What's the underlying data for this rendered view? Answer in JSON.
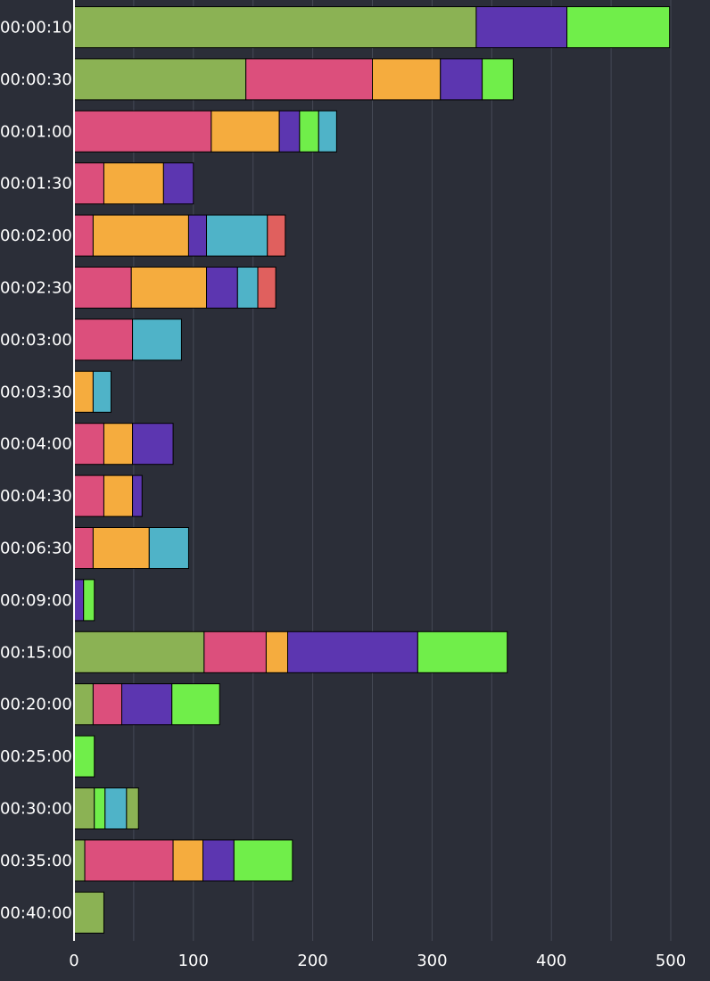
{
  "chart_data": {
    "type": "bar",
    "orientation": "horizontal",
    "stacked": true,
    "title": "",
    "xlabel": "",
    "ylabel": "",
    "xlim": [
      0,
      530
    ],
    "x_ticks": [
      0,
      100,
      200,
      300,
      400,
      500
    ],
    "grid": true,
    "legend": "none",
    "categories": [
      "00:00:10",
      "00:00:30",
      "00:01:00",
      "00:01:30",
      "00:02:00",
      "00:02:30",
      "00:03:00",
      "00:03:30",
      "00:04:00",
      "00:04:30",
      "00:06:30",
      "00:09:00",
      "00:15:00",
      "00:20:00",
      "00:25:00",
      "00:30:00",
      "00:35:00",
      "00:40:00"
    ],
    "stacks": [
      [
        {
          "color": "#8bb254",
          "value": 337
        },
        {
          "color": "#5c36b0",
          "value": 76
        },
        {
          "color": "#70ee4a",
          "value": 86
        }
      ],
      [
        {
          "color": "#8bb254",
          "value": 144
        },
        {
          "color": "#dc4f7c",
          "value": 106
        },
        {
          "color": "#f5ac3e",
          "value": 57
        },
        {
          "color": "#5c36b0",
          "value": 35
        },
        {
          "color": "#70ee4a",
          "value": 26
        }
      ],
      [
        {
          "color": "#dc4f7c",
          "value": 115
        },
        {
          "color": "#f5ac3e",
          "value": 57
        },
        {
          "color": "#5c36b0",
          "value": 17
        },
        {
          "color": "#70ee4a",
          "value": 16
        },
        {
          "color": "#4fb3c8",
          "value": 15
        }
      ],
      [
        {
          "color": "#dc4f7c",
          "value": 25
        },
        {
          "color": "#f5ac3e",
          "value": 50
        },
        {
          "color": "#5c36b0",
          "value": 25
        }
      ],
      [
        {
          "color": "#dc4f7c",
          "value": 16
        },
        {
          "color": "#f5ac3e",
          "value": 80
        },
        {
          "color": "#5c36b0",
          "value": 15
        },
        {
          "color": "#4fb3c8",
          "value": 51
        },
        {
          "color": "#e0605e",
          "value": 15
        }
      ],
      [
        {
          "color": "#dc4f7c",
          "value": 48
        },
        {
          "color": "#f5ac3e",
          "value": 63
        },
        {
          "color": "#5c36b0",
          "value": 26
        },
        {
          "color": "#4fb3c8",
          "value": 17
        },
        {
          "color": "#e0605e",
          "value": 15
        }
      ],
      [
        {
          "color": "#dc4f7c",
          "value": 49
        },
        {
          "color": "#4fb3c8",
          "value": 41
        }
      ],
      [
        {
          "color": "#f5ac3e",
          "value": 16
        },
        {
          "color": "#4fb3c8",
          "value": 15
        }
      ],
      [
        {
          "color": "#dc4f7c",
          "value": 25
        },
        {
          "color": "#f5ac3e",
          "value": 24
        },
        {
          "color": "#5c36b0",
          "value": 34
        }
      ],
      [
        {
          "color": "#dc4f7c",
          "value": 25
        },
        {
          "color": "#f5ac3e",
          "value": 24
        },
        {
          "color": "#5c36b0",
          "value": 8
        }
      ],
      [
        {
          "color": "#dc4f7c",
          "value": 16
        },
        {
          "color": "#f5ac3e",
          "value": 47
        },
        {
          "color": "#4fb3c8",
          "value": 33
        }
      ],
      [
        {
          "color": "#5c36b0",
          "value": 8
        },
        {
          "color": "#70ee4a",
          "value": 9
        }
      ],
      [
        {
          "color": "#8bb254",
          "value": 109
        },
        {
          "color": "#dc4f7c",
          "value": 52
        },
        {
          "color": "#f5ac3e",
          "value": 18
        },
        {
          "color": "#5c36b0",
          "value": 109
        },
        {
          "color": "#70ee4a",
          "value": 75
        }
      ],
      [
        {
          "color": "#8bb254",
          "value": 16
        },
        {
          "color": "#dc4f7c",
          "value": 24
        },
        {
          "color": "#5c36b0",
          "value": 42
        },
        {
          "color": "#70ee4a",
          "value": 40
        }
      ],
      [
        {
          "color": "#70ee4a",
          "value": 17
        }
      ],
      [
        {
          "color": "#8bb254",
          "value": 17
        },
        {
          "color": "#70ee4a",
          "value": 9
        },
        {
          "color": "#4fb3c8",
          "value": 18
        },
        {
          "color": "#8bb254",
          "value": 10
        }
      ],
      [
        {
          "color": "#8bb254",
          "value": 9
        },
        {
          "color": "#dc4f7c",
          "value": 74
        },
        {
          "color": "#f5ac3e",
          "value": 25
        },
        {
          "color": "#5c36b0",
          "value": 26
        },
        {
          "color": "#70ee4a",
          "value": 49
        }
      ],
      [
        {
          "color": "#8bb254",
          "value": 25
        }
      ]
    ]
  },
  "colors": {
    "background": "#2b2e38",
    "grid": "#454956",
    "axis": "#ffffff",
    "text": "#ffffff",
    "bar_outline": "#000000"
  }
}
